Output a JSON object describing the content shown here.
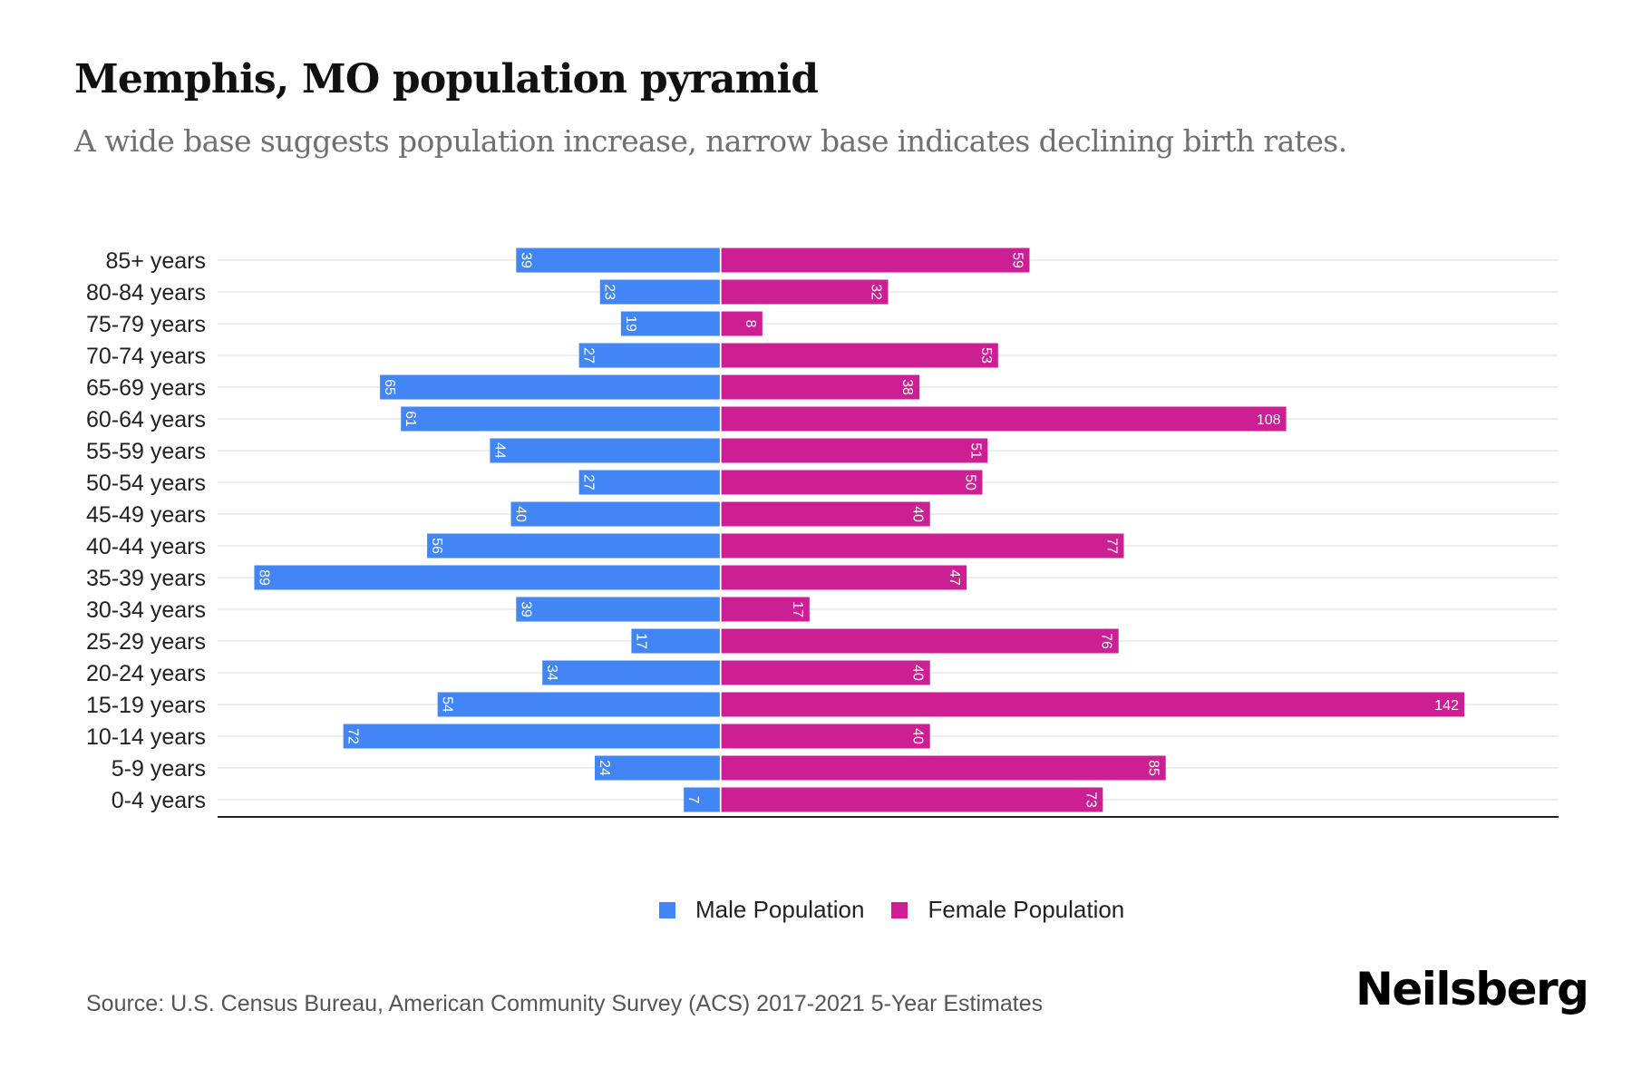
{
  "header": {
    "title": "Memphis, MO population pyramid",
    "subtitle": "A wide base suggests population increase, narrow base indicates declining birth rates."
  },
  "legend": {
    "male_label": "Male Population",
    "female_label": "Female Population"
  },
  "footer": {
    "source": "Source: U.S. Census Bureau, American Community Survey (ACS) 2017-2021 5-Year Estimates",
    "brand": "Neilsberg"
  },
  "colors": {
    "male": "#4285f4",
    "female": "#cc1f93",
    "grid": "#eeeeee",
    "axis": "#222222",
    "label": "#222222"
  },
  "chart_data": {
    "type": "bar",
    "orientation": "horizontal-pyramid",
    "title": "Memphis, MO population pyramid",
    "subtitle": "A wide base suggests population increase, narrow base indicates declining birth rates.",
    "xlabel": "",
    "ylabel": "",
    "grid": true,
    "legend_position": "bottom-center",
    "categories": [
      "85+ years",
      "80-84 years",
      "75-79 years",
      "70-74 years",
      "65-69 years",
      "60-64 years",
      "55-59 years",
      "50-54 years",
      "45-49 years",
      "40-44 years",
      "35-39 years",
      "30-34 years",
      "25-29 years",
      "20-24 years",
      "15-19 years",
      "10-14 years",
      "5-9 years",
      "0-4 years"
    ],
    "series": [
      {
        "name": "Male Population",
        "side": "left",
        "values": [
          39,
          23,
          19,
          27,
          65,
          61,
          44,
          27,
          40,
          56,
          89,
          39,
          17,
          34,
          54,
          72,
          24,
          7
        ]
      },
      {
        "name": "Female Population",
        "side": "right",
        "values": [
          59,
          32,
          8,
          53,
          38,
          108,
          51,
          50,
          40,
          77,
          47,
          17,
          76,
          40,
          142,
          40,
          85,
          73
        ]
      }
    ],
    "xlim": [
      -96,
      160
    ]
  }
}
